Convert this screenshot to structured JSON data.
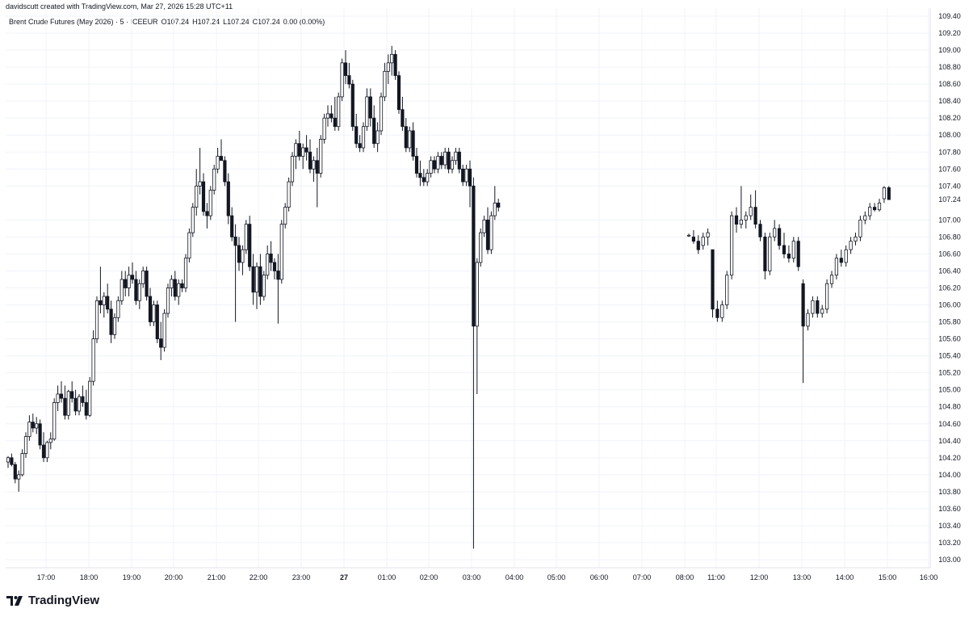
{
  "header": {
    "credit": "davidscutt created with TradingView.com, Mar 27, 2026 15:28 UTC+11",
    "symbol": "Brent Crude Futures (May 2026) · 5 · ICEEUR",
    "open": "O107.24",
    "high": "H107.24",
    "low": "L107.24",
    "close": "C107.24",
    "change": "0.00 (0.00%)"
  },
  "logo": {
    "text": "TradingView",
    "icon": "tradingview-logo-icon"
  },
  "price_tag": "107.24",
  "colors": {
    "grid": "#f0f3fa",
    "candle": "#131722",
    "up_fill": "#ffffff",
    "down_fill": "#131722",
    "axis_text": "#131722"
  },
  "chart_data": {
    "type": "candlestick",
    "title": "Brent Crude Futures (May 2026) · 5 · ICEEUR",
    "y_ticks": [
      109.4,
      109.2,
      109.0,
      108.8,
      108.6,
      108.4,
      108.2,
      108.0,
      107.8,
      107.6,
      107.4,
      107.24,
      107.0,
      106.8,
      106.6,
      106.4,
      106.2,
      106.0,
      105.8,
      105.6,
      105.4,
      105.2,
      105.0,
      104.8,
      104.6,
      104.4,
      104.2,
      104.0,
      103.8,
      103.6,
      103.4,
      103.2,
      103.0
    ],
    "y_tick_labels": [
      "109.40",
      "109.20",
      "109.00",
      "108.80",
      "108.60",
      "108.40",
      "108.20",
      "108.00",
      "107.80",
      "107.60",
      "107.40",
      "107.24",
      "107.00",
      "106.80",
      "106.60",
      "106.40",
      "106.20",
      "106.00",
      "105.80",
      "105.60",
      "105.40",
      "105.20",
      "105.00",
      "104.80",
      "104.60",
      "104.40",
      "104.20",
      "104.00",
      "103.80",
      "103.60",
      "103.40",
      "103.20",
      "103.00"
    ],
    "ylim": [
      102.86,
      109.48
    ],
    "x_ticks": [
      "17:00",
      "18:00",
      "19:00",
      "20:00",
      "21:00",
      "22:00",
      "23:00",
      "27",
      "01:00",
      "02:00",
      "03:00",
      "04:00",
      "05:00",
      "06:00",
      "07:00",
      "08:00",
      "11:00",
      "12:00",
      "13:00",
      "14:00",
      "15:00",
      "16:00"
    ],
    "last_price": 107.24,
    "ohlc": [
      [
        104.15,
        104.22,
        104.08,
        104.2
      ],
      [
        104.2,
        104.25,
        104.1,
        104.12
      ],
      [
        104.12,
        104.15,
        103.9,
        103.95
      ],
      [
        103.95,
        104.05,
        103.8,
        104.0
      ],
      [
        104.0,
        104.3,
        103.98,
        104.25
      ],
      [
        104.25,
        104.5,
        104.2,
        104.45
      ],
      [
        104.45,
        104.7,
        104.4,
        104.62
      ],
      [
        104.62,
        104.72,
        104.5,
        104.55
      ],
      [
        104.55,
        104.68,
        104.48,
        104.6
      ],
      [
        104.6,
        104.65,
        104.3,
        104.35
      ],
      [
        104.35,
        104.5,
        104.15,
        104.2
      ],
      [
        104.2,
        104.4,
        104.15,
        104.38
      ],
      [
        104.38,
        104.5,
        104.3,
        104.42
      ],
      [
        104.42,
        104.9,
        104.4,
        104.85
      ],
      [
        104.85,
        105.05,
        104.75,
        104.95
      ],
      [
        104.95,
        105.1,
        104.85,
        104.9
      ],
      [
        104.9,
        105.05,
        104.65,
        104.7
      ],
      [
        104.7,
        105.0,
        104.65,
        104.98
      ],
      [
        104.98,
        105.1,
        104.85,
        104.9
      ],
      [
        104.9,
        105.0,
        104.7,
        104.75
      ],
      [
        104.75,
        104.95,
        104.7,
        104.92
      ],
      [
        104.92,
        105.05,
        104.8,
        104.85
      ],
      [
        104.85,
        105.0,
        104.65,
        104.7
      ],
      [
        104.7,
        105.15,
        104.68,
        105.1
      ],
      [
        105.1,
        105.7,
        105.05,
        105.6
      ],
      [
        105.6,
        106.1,
        105.55,
        106.05
      ],
      [
        106.05,
        106.45,
        105.9,
        106.0
      ],
      [
        106.0,
        106.15,
        105.85,
        106.1
      ],
      [
        106.1,
        106.25,
        105.9,
        105.95
      ],
      [
        105.95,
        106.05,
        105.55,
        105.65
      ],
      [
        105.65,
        105.9,
        105.6,
        105.85
      ],
      [
        105.85,
        106.1,
        105.8,
        106.05
      ],
      [
        106.05,
        106.4,
        106.0,
        106.3
      ],
      [
        106.3,
        106.4,
        106.1,
        106.2
      ],
      [
        106.2,
        106.45,
        106.1,
        106.35
      ],
      [
        106.35,
        106.5,
        106.25,
        106.3
      ],
      [
        106.3,
        106.4,
        106.0,
        106.05
      ],
      [
        106.05,
        106.3,
        105.95,
        106.25
      ],
      [
        106.25,
        106.45,
        106.2,
        106.4
      ],
      [
        106.4,
        106.45,
        106.05,
        106.1
      ],
      [
        106.1,
        106.2,
        105.75,
        105.8
      ],
      [
        105.8,
        106.05,
        105.75,
        106.0
      ],
      [
        106.0,
        106.05,
        105.55,
        105.6
      ],
      [
        105.6,
        105.8,
        105.35,
        105.5
      ],
      [
        105.5,
        105.95,
        105.45,
        105.9
      ],
      [
        105.9,
        106.25,
        105.85,
        106.2
      ],
      [
        106.2,
        106.35,
        106.1,
        106.3
      ],
      [
        106.3,
        106.4,
        106.05,
        106.1
      ],
      [
        106.1,
        106.3,
        106.0,
        106.25
      ],
      [
        106.25,
        106.3,
        106.15,
        106.2
      ],
      [
        106.2,
        106.6,
        106.15,
        106.55
      ],
      [
        106.55,
        106.9,
        106.5,
        106.85
      ],
      [
        106.85,
        107.2,
        106.8,
        107.15
      ],
      [
        107.15,
        107.6,
        107.05,
        107.4
      ],
      [
        107.4,
        107.85,
        107.3,
        107.45
      ],
      [
        107.45,
        107.55,
        107.05,
        107.1
      ],
      [
        107.1,
        107.2,
        106.9,
        107.05
      ],
      [
        107.05,
        107.4,
        107.0,
        107.35
      ],
      [
        107.35,
        107.65,
        107.3,
        107.6
      ],
      [
        107.6,
        107.85,
        107.55,
        107.75
      ],
      [
        107.75,
        107.95,
        107.7,
        107.7
      ],
      [
        107.7,
        107.75,
        107.4,
        107.45
      ],
      [
        107.45,
        107.55,
        106.95,
        107.05
      ],
      [
        107.05,
        107.15,
        106.75,
        106.8
      ],
      [
        106.8,
        106.95,
        105.8,
        106.7
      ],
      [
        106.7,
        106.8,
        106.4,
        106.5
      ],
      [
        106.5,
        106.7,
        106.35,
        106.65
      ],
      [
        106.65,
        107.0,
        106.6,
        106.95
      ],
      [
        106.95,
        107.05,
        106.4,
        106.45
      ],
      [
        106.45,
        106.6,
        106.0,
        106.15
      ],
      [
        106.15,
        106.5,
        105.95,
        106.45
      ],
      [
        106.45,
        106.6,
        106.0,
        106.1
      ],
      [
        106.1,
        106.4,
        106.05,
        106.35
      ],
      [
        106.35,
        106.7,
        106.3,
        106.6
      ],
      [
        106.6,
        106.75,
        106.4,
        106.5
      ],
      [
        106.5,
        106.55,
        106.3,
        106.4
      ],
      [
        106.4,
        106.6,
        105.78,
        106.3
      ],
      [
        106.3,
        107.0,
        106.25,
        106.95
      ],
      [
        106.95,
        107.2,
        106.9,
        107.15
      ],
      [
        107.15,
        107.5,
        107.1,
        107.45
      ],
      [
        107.45,
        107.8,
        107.4,
        107.75
      ],
      [
        107.75,
        107.95,
        107.6,
        107.9
      ],
      [
        107.9,
        108.05,
        107.7,
        107.75
      ],
      [
        107.75,
        107.9,
        107.6,
        107.85
      ],
      [
        107.85,
        108.0,
        107.7,
        107.8
      ],
      [
        107.8,
        107.95,
        107.55,
        107.6
      ],
      [
        107.6,
        107.75,
        107.45,
        107.7
      ],
      [
        107.7,
        107.85,
        107.15,
        107.55
      ],
      [
        107.55,
        108.0,
        107.5,
        107.95
      ],
      [
        107.95,
        108.25,
        107.9,
        108.2
      ],
      [
        108.2,
        108.35,
        108.1,
        108.25
      ],
      [
        108.25,
        108.35,
        108.15,
        108.2
      ],
      [
        108.2,
        108.45,
        108.05,
        108.1
      ],
      [
        108.1,
        108.5,
        108.05,
        108.45
      ],
      [
        108.45,
        108.9,
        108.4,
        108.85
      ],
      [
        108.85,
        109.0,
        108.6,
        108.7
      ],
      [
        108.7,
        108.85,
        108.55,
        108.6
      ],
      [
        108.6,
        108.65,
        108.05,
        108.1
      ],
      [
        108.1,
        108.25,
        107.85,
        107.9
      ],
      [
        107.9,
        108.0,
        107.8,
        107.85
      ],
      [
        107.85,
        108.15,
        107.8,
        108.1
      ],
      [
        108.1,
        108.55,
        108.05,
        108.45
      ],
      [
        108.45,
        108.55,
        108.1,
        108.2
      ],
      [
        108.2,
        108.35,
        107.85,
        107.9
      ],
      [
        107.9,
        108.15,
        107.8,
        108.05
      ],
      [
        108.05,
        108.5,
        108.0,
        108.45
      ],
      [
        108.45,
        108.85,
        108.4,
        108.75
      ],
      [
        108.75,
        108.95,
        108.6,
        108.85
      ],
      [
        108.85,
        109.05,
        108.7,
        108.95
      ],
      [
        108.95,
        109.0,
        108.65,
        108.7
      ],
      [
        108.7,
        108.75,
        108.25,
        108.3
      ],
      [
        108.3,
        108.45,
        108.05,
        108.1
      ],
      [
        108.1,
        108.2,
        107.8,
        107.85
      ],
      [
        107.85,
        108.1,
        107.8,
        108.05
      ],
      [
        108.05,
        108.15,
        107.7,
        107.75
      ],
      [
        107.75,
        107.85,
        107.5,
        107.55
      ],
      [
        107.55,
        107.7,
        107.4,
        107.5
      ],
      [
        107.5,
        107.6,
        107.4,
        107.45
      ],
      [
        107.45,
        107.6,
        107.4,
        107.55
      ],
      [
        107.55,
        107.75,
        107.5,
        107.7
      ],
      [
        107.7,
        107.75,
        107.55,
        107.6
      ],
      [
        107.6,
        107.8,
        107.55,
        107.75
      ],
      [
        107.75,
        107.8,
        107.6,
        107.65
      ],
      [
        107.65,
        107.85,
        107.6,
        107.8
      ],
      [
        107.8,
        107.85,
        107.55,
        107.6
      ],
      [
        107.6,
        107.75,
        107.55,
        107.7
      ],
      [
        107.7,
        107.85,
        107.65,
        107.8
      ],
      [
        107.8,
        107.85,
        107.55,
        107.6
      ],
      [
        107.6,
        107.65,
        107.4,
        107.45
      ],
      [
        107.45,
        107.65,
        107.4,
        107.6
      ],
      [
        107.6,
        107.7,
        107.15,
        107.4
      ],
      [
        107.4,
        107.5,
        103.13,
        105.75
      ],
      [
        105.75,
        106.55,
        104.95,
        106.5
      ],
      [
        106.5,
        106.9,
        106.45,
        106.85
      ],
      [
        106.85,
        107.05,
        106.8,
        107.0
      ],
      [
        107.0,
        107.15,
        106.6,
        106.65
      ],
      [
        106.65,
        107.1,
        106.6,
        107.05
      ],
      [
        107.05,
        107.4,
        107.0,
        107.2
      ],
      [
        107.2,
        107.25,
        107.1,
        107.15
      ]
    ],
    "ohlc_after_gap": [
      [
        106.82,
        106.84,
        106.8,
        106.82
      ],
      [
        106.8,
        106.88,
        106.72,
        106.75
      ],
      [
        106.75,
        106.82,
        106.6,
        106.65
      ],
      [
        106.7,
        106.85,
        106.65,
        106.8
      ],
      [
        106.8,
        106.9,
        106.7,
        106.85
      ],
      [
        106.65,
        106.65,
        105.85,
        105.95
      ],
      [
        105.95,
        106.05,
        105.8,
        105.85
      ],
      [
        105.85,
        106.05,
        105.8,
        106.0
      ],
      [
        106.0,
        106.4,
        105.95,
        106.35
      ],
      [
        106.35,
        107.1,
        106.3,
        107.05
      ],
      [
        107.05,
        107.15,
        106.85,
        106.95
      ],
      [
        106.95,
        107.4,
        106.9,
        107.0
      ],
      [
        107.0,
        107.1,
        106.9,
        107.05
      ],
      [
        107.05,
        107.3,
        107.0,
        107.15
      ],
      [
        107.15,
        107.35,
        106.9,
        106.95
      ],
      [
        106.95,
        107.0,
        106.75,
        106.8
      ],
      [
        106.8,
        106.85,
        106.3,
        106.4
      ],
      [
        106.4,
        106.85,
        106.35,
        106.8
      ],
      [
        106.8,
        107.0,
        106.75,
        106.9
      ],
      [
        106.9,
        106.95,
        106.65,
        106.7
      ],
      [
        106.7,
        106.85,
        106.55,
        106.6
      ],
      [
        106.6,
        106.7,
        106.5,
        106.55
      ],
      [
        106.55,
        106.8,
        106.5,
        106.75
      ],
      [
        106.75,
        106.8,
        106.4,
        106.45
      ],
      [
        106.25,
        106.3,
        105.08,
        105.75
      ],
      [
        105.75,
        105.95,
        105.7,
        105.9
      ],
      [
        105.9,
        106.1,
        105.85,
        106.05
      ],
      [
        106.05,
        106.1,
        105.85,
        105.9
      ],
      [
        105.9,
        106.0,
        105.85,
        105.95
      ],
      [
        105.95,
        106.3,
        105.9,
        106.25
      ],
      [
        106.25,
        106.4,
        106.2,
        106.35
      ],
      [
        106.35,
        106.6,
        106.3,
        106.55
      ],
      [
        106.55,
        106.65,
        106.45,
        106.5
      ],
      [
        106.5,
        106.7,
        106.45,
        106.65
      ],
      [
        106.65,
        106.8,
        106.6,
        106.75
      ],
      [
        106.75,
        106.85,
        106.7,
        106.8
      ],
      [
        106.8,
        107.05,
        106.75,
        107.0
      ],
      [
        107.0,
        107.1,
        106.95,
        107.05
      ],
      [
        107.05,
        107.2,
        107.0,
        107.15
      ],
      [
        107.15,
        107.2,
        107.1,
        107.12
      ],
      [
        107.12,
        107.25,
        107.1,
        107.2
      ],
      [
        107.25,
        107.4,
        107.2,
        107.38
      ],
      [
        107.38,
        107.4,
        107.24,
        107.24
      ]
    ]
  }
}
